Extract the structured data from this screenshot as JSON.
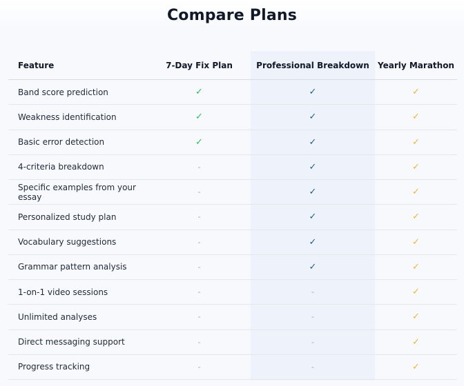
{
  "title": "Compare Plans",
  "colors": {
    "check_fix": "#22c55e",
    "check_pro": "#1f5f86",
    "check_year": "#f4b13b",
    "dash": "#9ca3af",
    "pro_column_bg": "#eef2fb"
  },
  "table": {
    "headers": {
      "feature": "Feature",
      "fix_plan": "7-Day Fix Plan",
      "professional": "Professional Breakdown",
      "yearly": "Yearly Marathon"
    },
    "rows": [
      {
        "feature": "Band score prediction",
        "fix": true,
        "pro": true,
        "year": true
      },
      {
        "feature": "Weakness identification",
        "fix": true,
        "pro": true,
        "year": true
      },
      {
        "feature": "Basic error detection",
        "fix": true,
        "pro": true,
        "year": true
      },
      {
        "feature": "4-criteria breakdown",
        "fix": false,
        "pro": true,
        "year": true
      },
      {
        "feature": "Specific examples from your essay",
        "fix": false,
        "pro": true,
        "year": true
      },
      {
        "feature": "Personalized study plan",
        "fix": false,
        "pro": true,
        "year": true
      },
      {
        "feature": "Vocabulary suggestions",
        "fix": false,
        "pro": true,
        "year": true
      },
      {
        "feature": "Grammar pattern analysis",
        "fix": false,
        "pro": true,
        "year": true
      },
      {
        "feature": "1-on-1 video sessions",
        "fix": false,
        "pro": false,
        "year": true
      },
      {
        "feature": "Unlimited analyses",
        "fix": false,
        "pro": false,
        "year": true
      },
      {
        "feature": "Direct messaging support",
        "fix": false,
        "pro": false,
        "year": true
      },
      {
        "feature": "Progress tracking",
        "fix": false,
        "pro": false,
        "year": true
      }
    ]
  },
  "symbols": {
    "check": "✓",
    "dash": "-"
  }
}
